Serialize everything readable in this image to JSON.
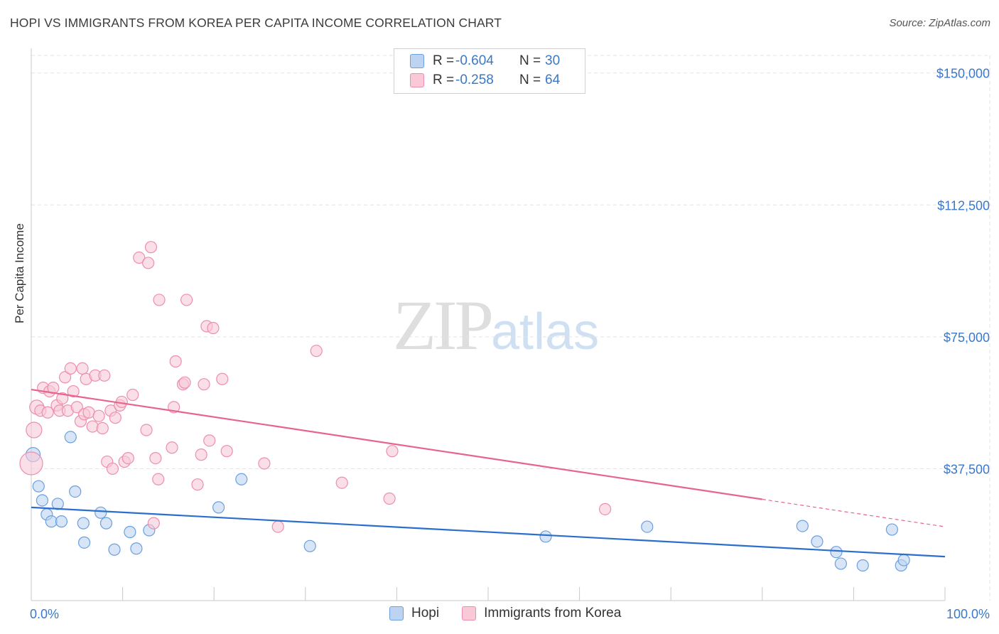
{
  "title": "HOPI VS IMMIGRANTS FROM KOREA PER CAPITA INCOME CORRELATION CHART",
  "source": "Source: ZipAtlas.com",
  "watermark": {
    "zip": "ZIP",
    "atlas": "atlas"
  },
  "legend": {
    "rows": [
      {
        "r_label": "R =",
        "r_value": "-0.604",
        "n_label": "N =",
        "n_value": "30"
      },
      {
        "r_label": "R =",
        "r_value": "-0.258",
        "n_label": "N =",
        "n_value": "64"
      }
    ]
  },
  "colors": {
    "hopi_fill": "#bcd3f2",
    "hopi_stroke": "#6a9fe0",
    "hopi_line": "#2a6fcc",
    "korea_fill": "#f9c9d8",
    "korea_stroke": "#ec8fab",
    "korea_line": "#e6648e",
    "tick_text": "#3a78c9",
    "grid": "#e3e3e3"
  },
  "chart_data": {
    "type": "scatter",
    "title": "HOPI VS IMMIGRANTS FROM KOREA PER CAPITA INCOME CORRELATION CHART",
    "xlabel": "",
    "ylabel": "Per Capita Income",
    "xlim": [
      0,
      100
    ],
    "ylim": [
      0,
      155000
    ],
    "x_tick_labels": [
      "0.0%",
      "100.0%"
    ],
    "y_ticks": [
      37500,
      75000,
      112500,
      150000
    ],
    "y_tick_labels": [
      "$37,500",
      "$75,000",
      "$112,500",
      "$150,000"
    ],
    "grid": true,
    "legend_position": "top-center",
    "series": [
      {
        "name": "Hopi",
        "r": -0.604,
        "n": 30,
        "trend": {
          "x0": 0,
          "y0": 26500,
          "x1": 100,
          "y1": 12500,
          "solid_to": 100
        },
        "points": [
          [
            0.2,
            41500
          ],
          [
            0.8,
            32500
          ],
          [
            1.2,
            28500
          ],
          [
            1.7,
            24500
          ],
          [
            2.2,
            22500
          ],
          [
            2.9,
            27500
          ],
          [
            3.3,
            22500
          ],
          [
            4.3,
            46500
          ],
          [
            4.8,
            31000
          ],
          [
            5.8,
            16500
          ],
          [
            5.7,
            22000
          ],
          [
            7.6,
            25000
          ],
          [
            8.2,
            22000
          ],
          [
            9.1,
            14500
          ],
          [
            10.8,
            19500
          ],
          [
            11.5,
            14800
          ],
          [
            12.9,
            20000
          ],
          [
            20.5,
            26500
          ],
          [
            23.0,
            34500
          ],
          [
            30.5,
            15500
          ],
          [
            56.3,
            18200
          ],
          [
            67.4,
            21000
          ],
          [
            84.4,
            21200
          ],
          [
            86.0,
            16800
          ],
          [
            88.1,
            13800
          ],
          [
            88.6,
            10500
          ],
          [
            91.0,
            10000
          ],
          [
            94.2,
            20200
          ],
          [
            95.2,
            10000
          ],
          [
            95.5,
            11500
          ]
        ]
      },
      {
        "name": "Immigrants from Korea",
        "r": -0.258,
        "n": 64,
        "trend": {
          "x0": 0,
          "y0": 60000,
          "x1": 100,
          "y1": 21000,
          "solid_to": 80
        },
        "points": [
          [
            0.0,
            39000
          ],
          [
            0.3,
            48500
          ],
          [
            0.6,
            55000
          ],
          [
            1.0,
            54000
          ],
          [
            1.3,
            60500
          ],
          [
            1.8,
            53500
          ],
          [
            2.0,
            59500
          ],
          [
            2.4,
            60500
          ],
          [
            2.8,
            55500
          ],
          [
            3.1,
            54000
          ],
          [
            3.4,
            57500
          ],
          [
            3.7,
            63500
          ],
          [
            4.0,
            54000
          ],
          [
            4.3,
            66000
          ],
          [
            4.6,
            59500
          ],
          [
            5.0,
            55000
          ],
          [
            5.4,
            51000
          ],
          [
            5.6,
            66000
          ],
          [
            5.8,
            53000
          ],
          [
            6.0,
            63000
          ],
          [
            6.3,
            53500
          ],
          [
            6.7,
            49500
          ],
          [
            7.0,
            64000
          ],
          [
            7.4,
            52500
          ],
          [
            7.8,
            49000
          ],
          [
            8.0,
            64000
          ],
          [
            8.3,
            39500
          ],
          [
            8.7,
            54000
          ],
          [
            8.9,
            37500
          ],
          [
            9.2,
            52000
          ],
          [
            9.7,
            55500
          ],
          [
            9.9,
            56500
          ],
          [
            10.2,
            39500
          ],
          [
            10.6,
            40500
          ],
          [
            11.1,
            58500
          ],
          [
            11.8,
            97500
          ],
          [
            12.6,
            48500
          ],
          [
            12.8,
            96000
          ],
          [
            13.1,
            100500
          ],
          [
            13.4,
            22000
          ],
          [
            13.6,
            40500
          ],
          [
            13.9,
            34500
          ],
          [
            14.0,
            85500
          ],
          [
            15.4,
            43500
          ],
          [
            15.6,
            55000
          ],
          [
            15.8,
            68000
          ],
          [
            16.6,
            61500
          ],
          [
            16.8,
            62000
          ],
          [
            17.0,
            85500
          ],
          [
            18.2,
            33000
          ],
          [
            18.6,
            41500
          ],
          [
            18.9,
            61500
          ],
          [
            19.2,
            78000
          ],
          [
            19.5,
            45500
          ],
          [
            19.9,
            77500
          ],
          [
            20.9,
            63000
          ],
          [
            21.4,
            42500
          ],
          [
            25.5,
            39000
          ],
          [
            27.0,
            21000
          ],
          [
            31.2,
            71000
          ],
          [
            34.0,
            33500
          ],
          [
            39.2,
            29000
          ],
          [
            39.5,
            42500
          ],
          [
            62.8,
            26000
          ]
        ]
      }
    ]
  }
}
